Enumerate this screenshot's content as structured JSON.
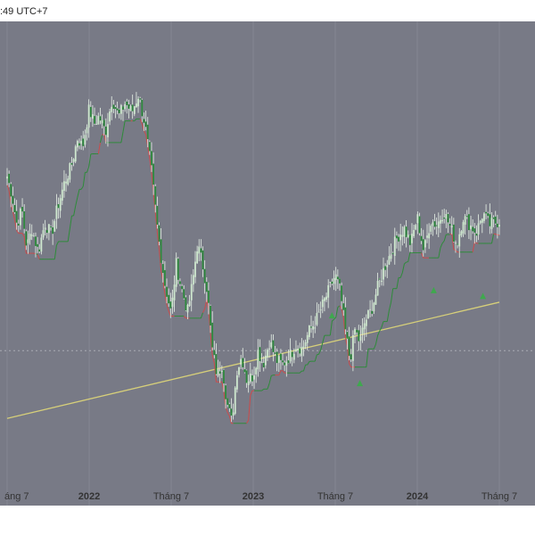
{
  "header": {
    "time_text": ":49 UTC+7"
  },
  "chart_data": {
    "type": "candlestick",
    "x_ticks": [
      {
        "label": "áng 7",
        "date": 2021.5,
        "bold": false
      },
      {
        "label": "2022",
        "date": 2022.0,
        "bold": true
      },
      {
        "label": "Tháng 7",
        "date": 2022.5,
        "bold": false
      },
      {
        "label": "2023",
        "date": 2023.0,
        "bold": true
      },
      {
        "label": "Tháng 7",
        "date": 2023.5,
        "bold": false
      },
      {
        "label": "2024",
        "date": 2024.0,
        "bold": true
      },
      {
        "label": "Tháng 7",
        "date": 2024.5,
        "bold": false
      }
    ],
    "price_path": [
      [
        2021.5,
        265
      ],
      [
        2021.53,
        255
      ],
      [
        2021.56,
        240
      ],
      [
        2021.59,
        248
      ],
      [
        2021.62,
        228
      ],
      [
        2021.65,
        238
      ],
      [
        2021.69,
        226
      ],
      [
        2021.73,
        241
      ],
      [
        2021.77,
        235
      ],
      [
        2021.81,
        250
      ],
      [
        2021.85,
        262
      ],
      [
        2021.89,
        270
      ],
      [
        2021.93,
        285
      ],
      [
        2021.96,
        280
      ],
      [
        2022.0,
        300
      ],
      [
        2022.03,
        292
      ],
      [
        2022.06,
        296
      ],
      [
        2022.1,
        288
      ],
      [
        2022.14,
        305
      ],
      [
        2022.18,
        296
      ],
      [
        2022.22,
        303
      ],
      [
        2022.26,
        298
      ],
      [
        2022.3,
        307
      ],
      [
        2022.34,
        292
      ],
      [
        2022.38,
        268
      ],
      [
        2022.42,
        235
      ],
      [
        2022.46,
        210
      ],
      [
        2022.5,
        194
      ],
      [
        2022.53,
        220
      ],
      [
        2022.56,
        208
      ],
      [
        2022.6,
        195
      ],
      [
        2022.63,
        210
      ],
      [
        2022.66,
        230
      ],
      [
        2022.69,
        220
      ],
      [
        2022.72,
        206
      ],
      [
        2022.75,
        176
      ],
      [
        2022.78,
        162
      ],
      [
        2022.81,
        168
      ],
      [
        2022.84,
        148
      ],
      [
        2022.87,
        138
      ],
      [
        2022.9,
        165
      ],
      [
        2022.93,
        172
      ],
      [
        2022.96,
        160
      ],
      [
        2023.0,
        162
      ],
      [
        2023.03,
        175
      ],
      [
        2023.06,
        168
      ],
      [
        2023.1,
        180
      ],
      [
        2023.14,
        170
      ],
      [
        2023.18,
        168
      ],
      [
        2023.22,
        172
      ],
      [
        2023.26,
        178
      ],
      [
        2023.3,
        176
      ],
      [
        2023.34,
        185
      ],
      [
        2023.38,
        190
      ],
      [
        2023.42,
        198
      ],
      [
        2023.46,
        206
      ],
      [
        2023.5,
        214
      ],
      [
        2023.53,
        206
      ],
      [
        2023.56,
        186
      ],
      [
        2023.59,
        170
      ],
      [
        2023.62,
        186
      ],
      [
        2023.65,
        179
      ],
      [
        2023.68,
        190
      ],
      [
        2023.72,
        196
      ],
      [
        2023.76,
        208
      ],
      [
        2023.8,
        218
      ],
      [
        2023.84,
        226
      ],
      [
        2023.88,
        234
      ],
      [
        2023.92,
        238
      ],
      [
        2023.96,
        230
      ],
      [
        2024.0,
        244
      ],
      [
        2024.04,
        226
      ],
      [
        2024.08,
        242
      ],
      [
        2024.12,
        240
      ],
      [
        2024.16,
        247
      ],
      [
        2024.2,
        239
      ],
      [
        2024.24,
        230
      ],
      [
        2024.28,
        244
      ],
      [
        2024.32,
        240
      ],
      [
        2024.36,
        236
      ],
      [
        2024.4,
        246
      ],
      [
        2024.44,
        240
      ],
      [
        2024.5,
        242
      ]
    ],
    "markers": [
      {
        "date": 2023.48,
        "price": 193
      },
      {
        "date": 2023.65,
        "price": 158
      },
      {
        "date": 2024.1,
        "price": 206
      },
      {
        "date": 2024.4,
        "price": 203
      }
    ],
    "trendline": {
      "start": [
        2021.5,
        140
      ],
      "end": [
        2024.5,
        200
      ]
    },
    "ylim": [
      95,
      345
    ],
    "xlim": [
      2021.5,
      2024.5
    ],
    "horizontal_levels": [
      175
    ],
    "grid": true,
    "colors": {
      "background": "#787a86",
      "up_candle": "#cfe8cf",
      "down_candle": "#2f8a3e",
      "wick": "#e8f3e8",
      "supertrend_up": "#2e8b3a",
      "supertrend_down": "#cc4b4b",
      "trendline": "#d6cf7a",
      "marker": "#3fa84e",
      "level": "#a9abb4",
      "grid": "#858793"
    }
  }
}
